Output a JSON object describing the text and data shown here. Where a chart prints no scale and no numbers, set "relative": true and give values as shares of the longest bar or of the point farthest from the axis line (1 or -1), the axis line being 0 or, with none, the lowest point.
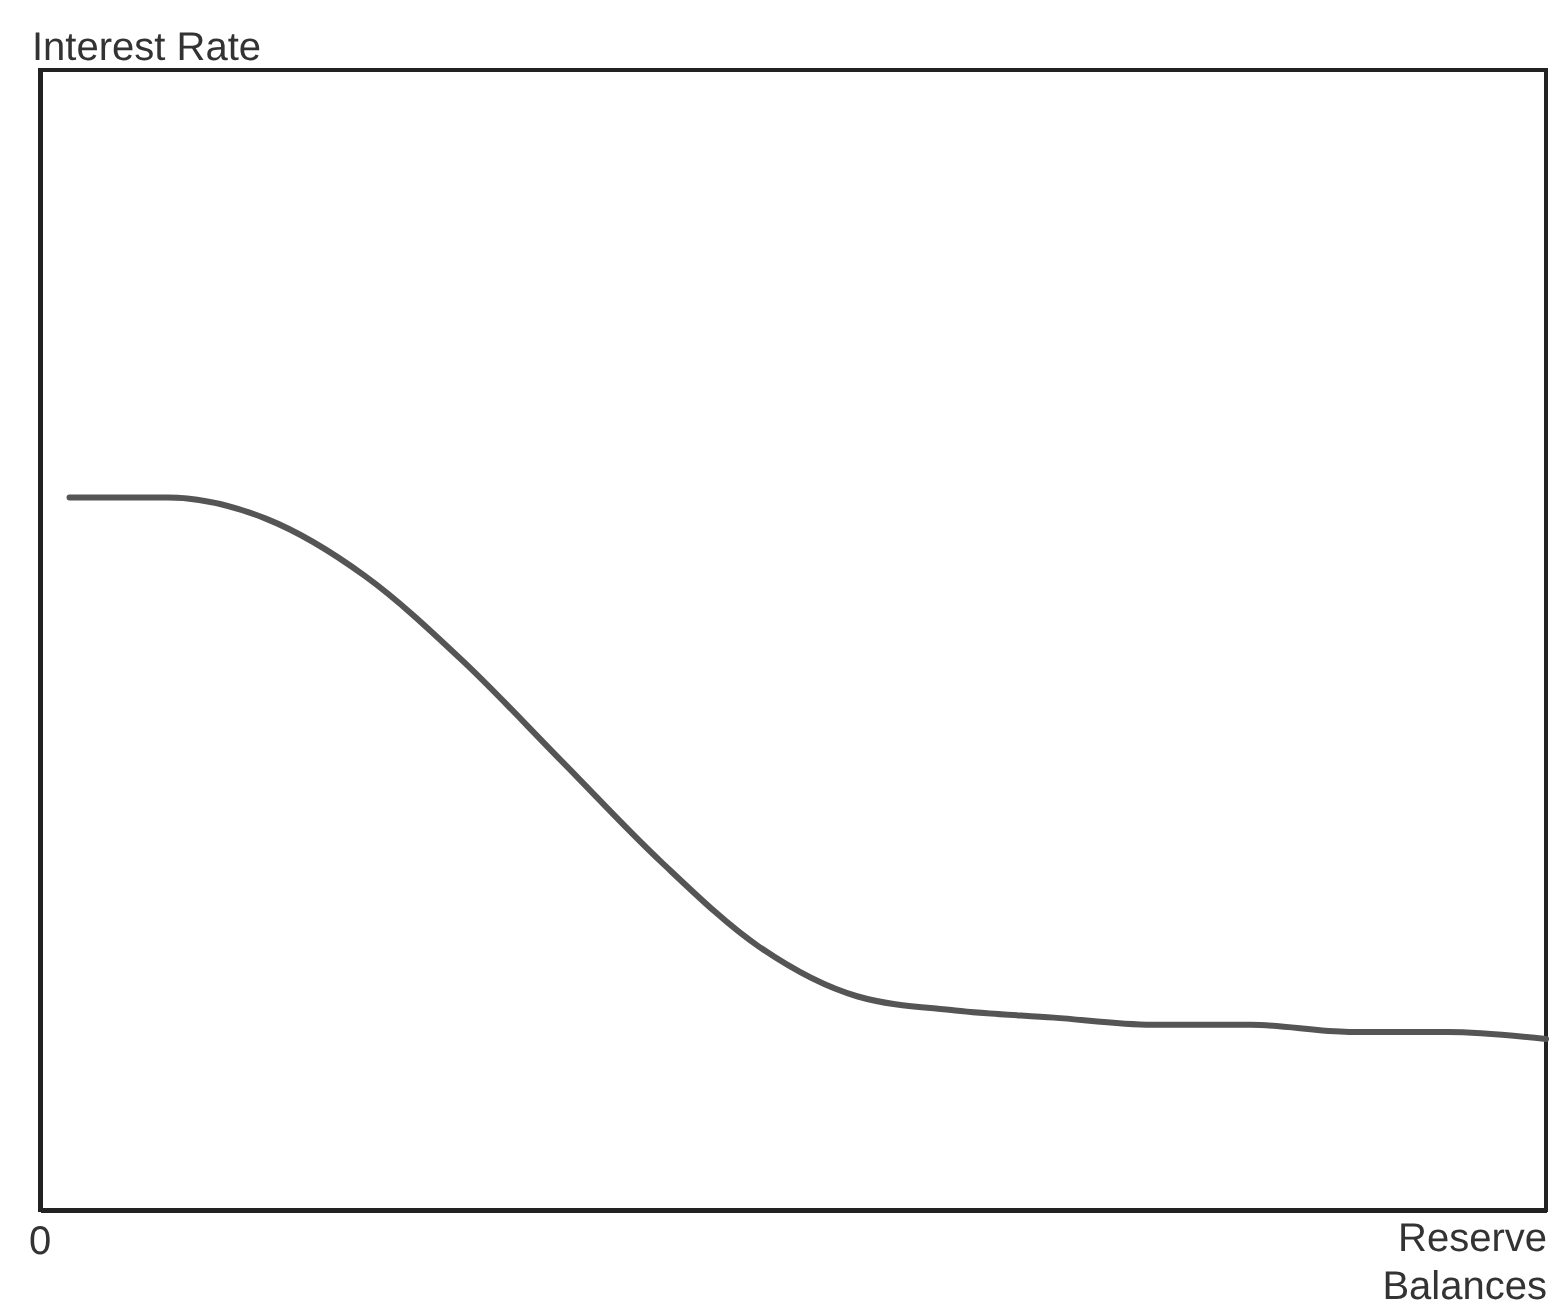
{
  "chart_data": {
    "type": "line",
    "relative": true,
    "xlabel": "Reserve Balances",
    "annotations": [
      "Interest Rate",
      "0"
    ],
    "categories": [
      null,
      null,
      null,
      null,
      null,
      null,
      null,
      null,
      null,
      null,
      null,
      null,
      null,
      null,
      null,
      null
    ],
    "series": [
      {
        "color": "#555555",
        "values": [
          1.0,
          1.0,
          0.97,
          0.89,
          0.77,
          0.63,
          0.49,
          0.37,
          0.3,
          0.28,
          0.27,
          0.26,
          0.26,
          0.25,
          0.25,
          0.24
        ]
      }
    ],
    "grid": false,
    "legend": false,
    "marker": "none",
    "line_style": "solid"
  }
}
